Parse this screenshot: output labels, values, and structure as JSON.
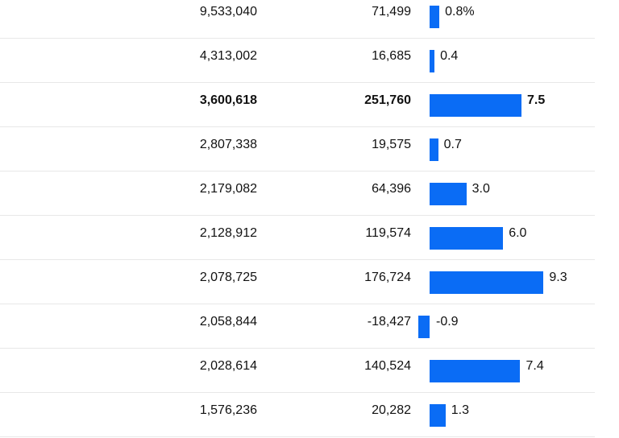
{
  "bar_color": "#0a6cf5",
  "chart_data": {
    "type": "table",
    "columns": [
      "population",
      "change",
      "percent_change"
    ],
    "rows": [
      {
        "population": "9,533,040",
        "change": "71,499",
        "pct": 0.8,
        "pct_label": "0.8%",
        "highlight": false
      },
      {
        "population": "4,313,002",
        "change": "16,685",
        "pct": 0.4,
        "pct_label": "0.4",
        "highlight": false
      },
      {
        "population": "3,600,618",
        "change": "251,760",
        "pct": 7.5,
        "pct_label": "7.5",
        "highlight": true
      },
      {
        "population": "2,807,338",
        "change": "19,575",
        "pct": 0.7,
        "pct_label": "0.7",
        "highlight": false
      },
      {
        "population": "2,179,082",
        "change": "64,396",
        "pct": 3.0,
        "pct_label": "3.0",
        "highlight": false
      },
      {
        "population": "2,128,912",
        "change": "119,574",
        "pct": 6.0,
        "pct_label": "6.0",
        "highlight": false
      },
      {
        "population": "2,078,725",
        "change": "176,724",
        "pct": 9.3,
        "pct_label": "9.3",
        "highlight": false
      },
      {
        "population": "2,058,844",
        "change": "-18,427",
        "pct": -0.9,
        "pct_label": "-0.9",
        "highlight": false
      },
      {
        "population": "2,028,614",
        "change": "140,524",
        "pct": 7.4,
        "pct_label": "7.4",
        "highlight": false
      },
      {
        "population": "1,576,236",
        "change": "20,282",
        "pct": 1.3,
        "pct_label": "1.3",
        "highlight": false
      }
    ]
  }
}
